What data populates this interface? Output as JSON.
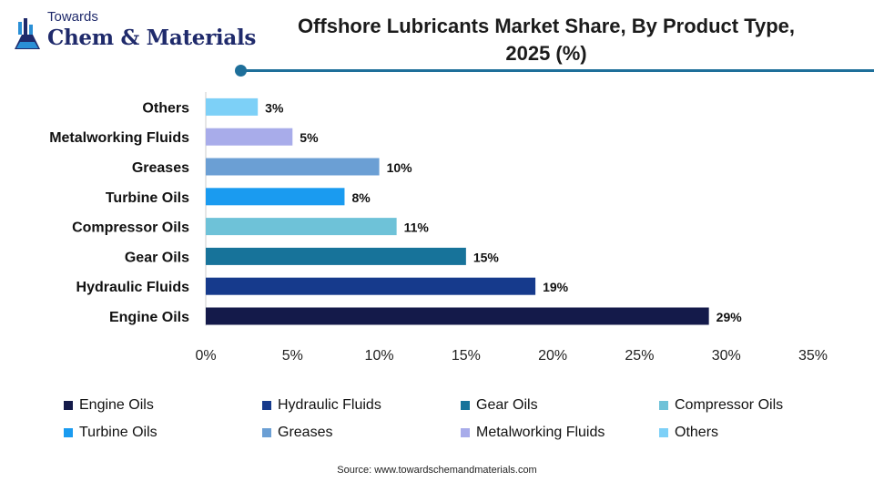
{
  "logo": {
    "top_text": "Towards",
    "main_text": "Chem & Materials"
  },
  "source": "Source: www.towardschemandmaterials.com",
  "chart_data": {
    "type": "bar",
    "orientation": "horizontal",
    "title": "Offshore Lubricants Market Share, By Product Type, 2025 (%)",
    "title_lines": [
      "Offshore Lubricants Market Share, By Product Type,",
      "2025 (%)"
    ],
    "categories": [
      "Engine Oils",
      "Hydraulic Fluids",
      "Gear Oils",
      "Compressor Oils",
      "Turbine Oils",
      "Greases",
      "Metalworking Fluids",
      "Others"
    ],
    "values": [
      29,
      19,
      15,
      11,
      8,
      10,
      5,
      3
    ],
    "value_labels": [
      "29%",
      "19%",
      "15%",
      "11%",
      "8%",
      "10%",
      "5%",
      "3%"
    ],
    "colors": [
      "#141a4a",
      "#163a8c",
      "#17739a",
      "#6ec2d8",
      "#1a9bf0",
      "#6b9fd4",
      "#a8acea",
      "#7dd0f7"
    ],
    "xlim": [
      0,
      35
    ],
    "xticks": [
      0,
      5,
      10,
      15,
      20,
      25,
      30,
      35
    ],
    "xtick_labels": [
      "0%",
      "5%",
      "10%",
      "15%",
      "20%",
      "25%",
      "30%",
      "35%"
    ],
    "grid": false,
    "legend": {
      "placement": "bottom",
      "items": [
        "Engine Oils",
        "Hydraulic Fluids",
        "Gear Oils",
        "Compressor Oils",
        "Turbine Oils",
        "Greases",
        "Metalworking Fluids",
        "Others"
      ]
    }
  }
}
